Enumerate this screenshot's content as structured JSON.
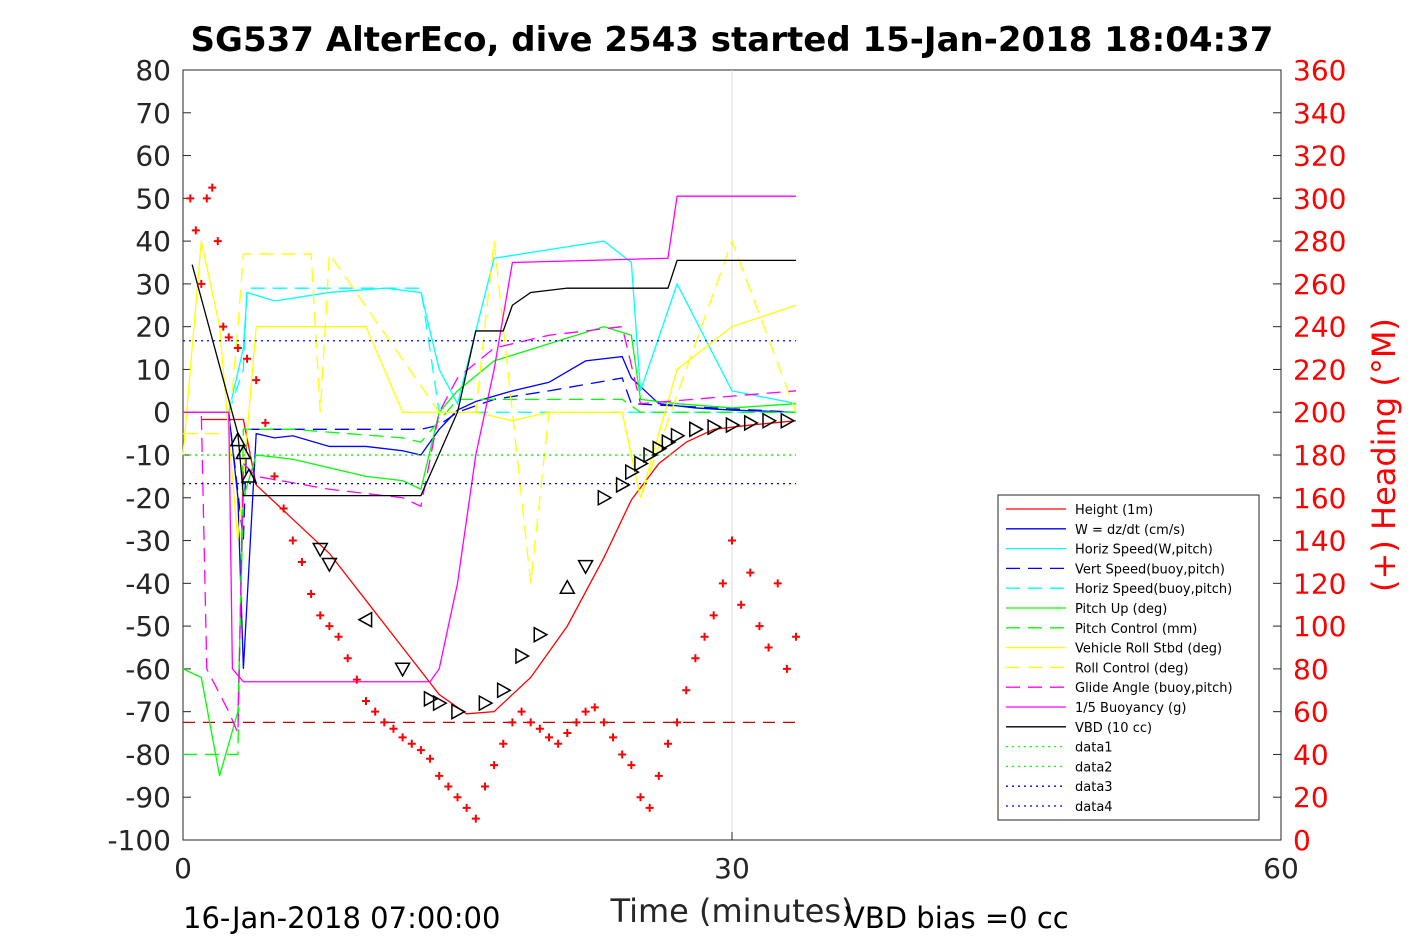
{
  "chart_data": {
    "type": "line",
    "title": "SG537 AlterEco, dive 2543 started 15-Jan-2018 18:04:37",
    "xlabel": "Time (minutes)",
    "ylabel": "",
    "ylabel_right": "(+) Heading (°M)",
    "xlim": [
      0,
      60
    ],
    "ylim": [
      -100,
      80
    ],
    "ylim_right": [
      0,
      360
    ],
    "x_ticks": [
      "0",
      "30",
      "60"
    ],
    "y_ticks": [
      "80",
      "70",
      "60",
      "50",
      "40",
      "30",
      "20",
      "10",
      "0",
      "-10",
      "-20",
      "-30",
      "-40",
      "-50",
      "-60",
      "-70",
      "-80",
      "-90",
      "-100"
    ],
    "y_ticks_right": [
      "360",
      "340",
      "320",
      "300",
      "280",
      "260",
      "240",
      "220",
      "200",
      "180",
      "160",
      "140",
      "120",
      "100",
      "80",
      "60",
      "40",
      "20",
      "0"
    ],
    "grid": "x at 30 only",
    "legend_position": "bottom-right",
    "footer_left": "16-Jan-2018 07:00:00",
    "footer_right": "VBD bias =0 cc",
    "colors": {
      "height": "#ff0000",
      "w": "#0000ff",
      "horiz_w": "#00ffff",
      "vert_buoy": "#0000ff",
      "horiz_buoy": "#00ffff",
      "pitch_up": "#00ff00",
      "pitch_control": "#00ff00",
      "roll": "#ffff00",
      "roll_control": "#ffff00",
      "glide": "#ff00ff",
      "buoyancy": "#ff00ff",
      "vbd": "#000000",
      "data1": "#00ff00",
      "data2": "#00ff00",
      "data3": "#0000ff",
      "data4": "#0000ff",
      "heading": "#ff0000"
    },
    "series": [
      {
        "name": "Height (1m)",
        "key": "height",
        "style": "solid",
        "x": [
          1.0,
          3.3,
          4.0,
          6.0,
          8.0,
          10.0,
          12.0,
          14.0,
          15.5,
          17.0,
          19.0,
          21.0,
          23.0,
          24.5,
          26.0,
          27.5,
          29.0,
          31.0,
          33.5
        ],
        "y": [
          -1.7,
          -1.7,
          -17.0,
          -25.0,
          -33.0,
          -44.0,
          -55.0,
          -66.0,
          -70.5,
          -70.0,
          -62.0,
          -50.0,
          -34.0,
          -20.5,
          -12.0,
          -7.0,
          -4.0,
          -3.0,
          -2.0
        ]
      },
      {
        "name": "W = dz/dt (cm/s)",
        "key": "w",
        "style": "solid",
        "x": [
          0,
          2.5,
          3.0,
          3.3,
          4.0,
          5.0,
          6.0,
          8.0,
          10.0,
          12.0,
          13.0,
          14.0,
          15.0,
          16.0,
          18.0,
          20.0,
          22.0,
          24.0,
          24.5,
          26.0,
          28.0,
          30.0,
          33.5
        ],
        "y": [
          0,
          0,
          -20,
          -60,
          -5,
          -6,
          -5.5,
          -8,
          -8,
          -9,
          -10,
          -4,
          0.5,
          2.5,
          5,
          7,
          12,
          13,
          8,
          2,
          1,
          0.5,
          0
        ]
      },
      {
        "name": "Horiz Speed(W,pitch)",
        "key": "horiz_w",
        "style": "solid",
        "x": [
          0,
          2.5,
          3.3,
          3.5,
          5.0,
          8.0,
          11.0,
          13.0,
          14.0,
          15.0,
          17.0,
          20.0,
          23.0,
          24.5,
          25.0,
          27.0,
          30.0,
          33.5
        ],
        "y": [
          0,
          0,
          15,
          28,
          26,
          28,
          29,
          28,
          10,
          2,
          36,
          38,
          40,
          35,
          5,
          30,
          5,
          2
        ]
      },
      {
        "name": "Vert Speed(buoy,pitch)",
        "key": "vert_buoy",
        "style": "dash",
        "x": [
          0,
          2.5,
          3.3,
          3.5,
          13.0,
          14.0,
          15.0,
          17.0,
          20.0,
          24.0,
          24.5,
          33.5
        ],
        "y": [
          0,
          0,
          -30,
          -4,
          -4,
          -3,
          0,
          3,
          5,
          8,
          2,
          0
        ]
      },
      {
        "name": "Horiz Speed(buoy,pitch)",
        "key": "horiz_buoy",
        "style": "dash",
        "x": [
          0,
          2.5,
          3.3,
          3.5,
          13.0,
          14.0,
          15.0,
          33.5
        ],
        "y": [
          0,
          0,
          10,
          29,
          29,
          0,
          0,
          0
        ]
      },
      {
        "name": "Pitch Up (deg)",
        "key": "pitch_up",
        "style": "solid",
        "x": [
          0,
          1.0,
          2.0,
          3.0,
          3.3,
          4.0,
          6.0,
          10.0,
          12.0,
          13.0,
          14.0,
          15.0,
          17.0,
          20.0,
          23.0,
          24.5,
          25.0,
          27.0,
          30.0,
          33.5
        ],
        "y": [
          -60,
          -62,
          -85,
          -70,
          -20,
          -10,
          -11,
          -15,
          -16,
          -18,
          0,
          5,
          12,
          16,
          20,
          18,
          3,
          2,
          1,
          2
        ]
      },
      {
        "name": "Pitch Control (mm)",
        "key": "pitch_control",
        "style": "dash",
        "x": [
          0,
          2.5,
          3.0,
          3.3,
          6.0,
          12.0,
          13.0,
          14.0,
          15.0,
          17.0,
          24.0,
          25.0,
          33.5
        ],
        "y": [
          -80,
          -80,
          -80,
          -4,
          -4,
          -6,
          -7,
          -2,
          3,
          3,
          3,
          0,
          0
        ]
      },
      {
        "name": "Vehicle Roll Stbd (deg)",
        "key": "roll",
        "style": "solid",
        "x": [
          0,
          1.0,
          2.0,
          3.0,
          4.0,
          6.0,
          8.0,
          10.0,
          12.0,
          14.0,
          16.0,
          18.0,
          20.0,
          22.0,
          24.0,
          25.0,
          27.0,
          30.0,
          33.5
        ],
        "y": [
          -10,
          40,
          20,
          -30,
          20,
          20,
          20,
          20,
          0,
          0,
          0,
          -2,
          0,
          0,
          0,
          -20,
          10,
          20,
          25
        ]
      },
      {
        "name": "Roll Control (deg)",
        "key": "roll_control",
        "style": "dash",
        "x": [
          0,
          2.5,
          3.0,
          3.3,
          7.0,
          7.5,
          8.0,
          14.0,
          16.0,
          17.0,
          18.0,
          19.0,
          20.0,
          24.0,
          25.0,
          30.0,
          33.5
        ],
        "y": [
          -5,
          -5,
          20,
          37,
          37,
          0,
          37,
          0,
          0,
          40,
          0,
          -40,
          0,
          0,
          -20,
          40,
          0
        ]
      },
      {
        "name": "Glide Angle (buoy,pitch)",
        "key": "glide",
        "style": "dash",
        "x": [
          0,
          1.0,
          1.3,
          2.5,
          3.0,
          3.3,
          4.0,
          8.0,
          12.0,
          13.0,
          14.0,
          15.0,
          17.0,
          20.0,
          24.0,
          25.0,
          33.5
        ],
        "y": [
          0,
          0,
          -60,
          -70,
          -75,
          -12,
          -15,
          -18,
          -20,
          -22,
          0,
          8,
          15,
          18,
          20,
          2,
          5
        ]
      },
      {
        "name": "1/5 Buoyancy (g)",
        "key": "buoyancy",
        "style": "solid",
        "x": [
          0,
          2.5,
          2.7,
          3.3,
          13.5,
          14.0,
          15.0,
          16.0,
          17.0,
          18.0,
          26.5,
          27.0,
          33.5
        ],
        "y": [
          0,
          0,
          -60,
          -63,
          -63,
          -60,
          -40,
          -10,
          10,
          35,
          36,
          50.5,
          50.5
        ]
      },
      {
        "name": "VBD (10 cc)",
        "key": "vbd",
        "style": "solid",
        "x": [
          0.5,
          3.0,
          3.3,
          13.0,
          15.0,
          16.0,
          17.5,
          18.0,
          19.0,
          21.0,
          26.5,
          27.0,
          33.5
        ],
        "y": [
          34.5,
          -5,
          -19.5,
          -19.5,
          0,
          19,
          19,
          25,
          28,
          29,
          29,
          35.5,
          35.5
        ]
      },
      {
        "name": "data1",
        "key": "data1",
        "style": "dot",
        "x": [
          0,
          33.5
        ],
        "y": [
          -10,
          -10
        ]
      },
      {
        "name": "data2",
        "key": "data2",
        "style": "dot",
        "x": [
          0,
          33.5
        ],
        "y": [
          -10,
          -10
        ]
      },
      {
        "name": "data3",
        "key": "data3",
        "style": "dot",
        "x": [
          0,
          33.5
        ],
        "y": [
          16.7,
          16.7
        ]
      },
      {
        "name": "data4",
        "key": "data4",
        "style": "dot",
        "x": [
          0,
          33.5
        ],
        "y": [
          -16.7,
          -16.7
        ]
      }
    ],
    "red_dash_line": {
      "x": [
        0,
        33.5
      ],
      "y": [
        -72.5,
        -72.5
      ]
    },
    "heading": {
      "x": [
        0.4,
        0.7,
        1.0,
        1.3,
        1.6,
        1.9,
        2.2,
        2.5,
        3.0,
        3.5,
        4.0,
        4.5,
        5.0,
        5.5,
        6.0,
        6.5,
        7.0,
        7.5,
        8.0,
        8.5,
        9.0,
        9.5,
        10.0,
        10.5,
        11.0,
        11.5,
        12.0,
        12.5,
        13.0,
        13.5,
        14.0,
        14.5,
        15.0,
        15.5,
        16.0,
        16.5,
        17.0,
        17.5,
        18.0,
        18.5,
        19.0,
        19.5,
        20.0,
        20.5,
        21.0,
        21.5,
        22.0,
        22.5,
        23.0,
        23.5,
        24.0,
        24.5,
        25.0,
        25.5,
        26.0,
        26.5,
        27.0,
        27.5,
        28.0,
        28.5,
        29.0,
        29.5,
        30.0,
        30.5,
        31.0,
        31.5,
        32.0,
        32.5,
        33.0,
        33.5
      ],
      "y": [
        300,
        285,
        260,
        300,
        305,
        280,
        240,
        235,
        230,
        225,
        215,
        195,
        170,
        155,
        140,
        130,
        115,
        105,
        100,
        95,
        85,
        75,
        65,
        60,
        55,
        52,
        48,
        45,
        42,
        38,
        30,
        25,
        20,
        15,
        10,
        25,
        35,
        45,
        55,
        60,
        55,
        52,
        48,
        45,
        50,
        55,
        60,
        62,
        55,
        48,
        40,
        35,
        20,
        15,
        30,
        45,
        55,
        70,
        85,
        95,
        105,
        120,
        140,
        110,
        125,
        100,
        90,
        120,
        80,
        95
      ]
    },
    "markers": {
      "x": [
        3.0,
        3.3,
        3.6,
        7.5,
        8.0,
        10.0,
        12.0,
        13.5,
        14.0,
        15.0,
        16.5,
        17.5,
        18.5,
        19.5,
        21.0,
        22.0,
        23.0,
        24.0,
        24.5,
        25.0,
        25.5,
        26.0,
        26.5,
        27.0,
        28.0,
        29.0,
        30.0,
        31.0,
        32.0,
        33.0
      ],
      "y": [
        -6.5,
        -9.5,
        -15.0,
        -32.0,
        -35.5,
        -48.5,
        -60.0,
        -67.0,
        -68.0,
        -70.0,
        -68.0,
        -65.0,
        -57.0,
        -52.0,
        -41.0,
        -36.0,
        -20.0,
        -17.0,
        -14.0,
        -12.0,
        -10.0,
        -8.5,
        -7.0,
        -5.5,
        -4.0,
        -3.5,
        -3.0,
        -2.5,
        -2.0,
        -2.0
      ],
      "dir": [
        "up",
        "up",
        "up",
        "down",
        "down",
        "left",
        "down",
        "right",
        "right",
        "right",
        "right",
        "right",
        "right",
        "right",
        "up",
        "down",
        "right",
        "right",
        "right",
        "right",
        "right",
        "right",
        "right",
        "right",
        "right",
        "right",
        "right",
        "right",
        "right",
        "right"
      ]
    }
  }
}
